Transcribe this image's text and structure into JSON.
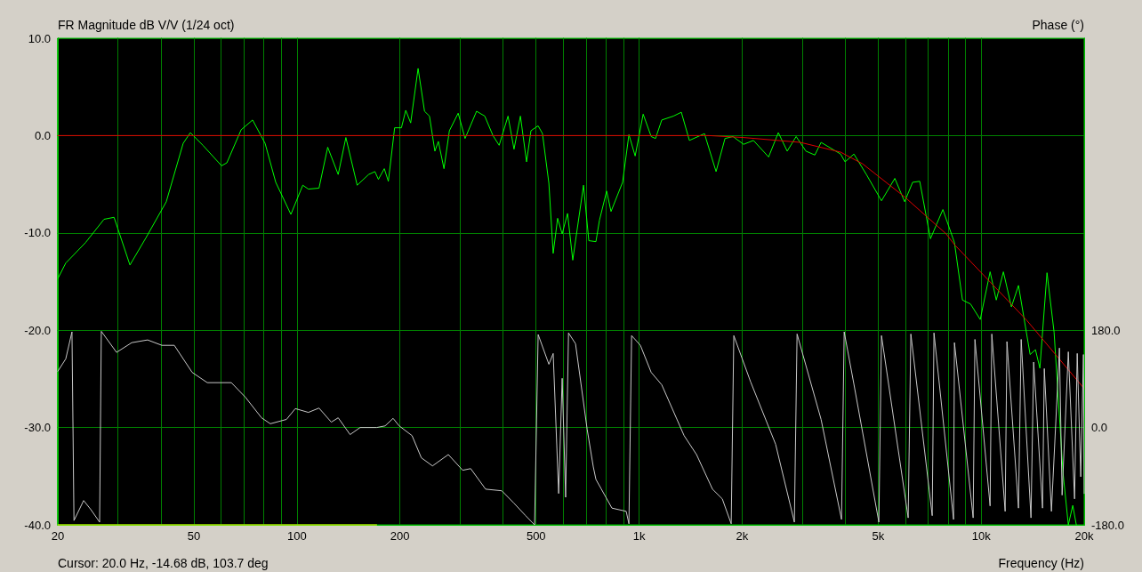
{
  "chart_data": {
    "type": "line",
    "title": "FR Magnitude dB V/V (1/24 oct)",
    "xlabel": "Frequency (Hz)",
    "y2label": "Phase (°)",
    "annotations": [
      "Cursor: 20.0 Hz, -14.68 dB, 103.7 deg"
    ],
    "log": "x",
    "grid": true,
    "marker": "none",
    "xlim": [
      20,
      20000
    ],
    "xticks": [
      20,
      {
        "value": 30,
        "label": null
      },
      {
        "value": 40,
        "label": null
      },
      50,
      {
        "value": 60,
        "label": null
      },
      {
        "value": 70,
        "label": null
      },
      {
        "value": 80,
        "label": null
      },
      {
        "value": 90,
        "label": null
      },
      100,
      200,
      {
        "value": 300,
        "label": null
      },
      {
        "value": 400,
        "label": null
      },
      500,
      {
        "value": 600,
        "label": null
      },
      {
        "value": 700,
        "label": null
      },
      {
        "value": 800,
        "label": null
      },
      {
        "value": 900,
        "label": null
      },
      {
        "value": 1000,
        "label": "1k"
      },
      {
        "value": 2000,
        "label": "2k"
      },
      {
        "value": 3000,
        "label": null
      },
      {
        "value": 4000,
        "label": null
      },
      {
        "value": 5000,
        "label": "5k"
      },
      {
        "value": 6000,
        "label": null
      },
      {
        "value": 7000,
        "label": null
      },
      {
        "value": 8000,
        "label": null
      },
      {
        "value": 9000,
        "label": null
      },
      {
        "value": 10000,
        "label": "10k"
      },
      {
        "value": 20000,
        "label": "20k"
      }
    ],
    "ylim": [
      -40,
      10
    ],
    "yticks": [
      {
        "value": -40,
        "label": "-40.0"
      },
      {
        "value": -30,
        "label": "-30.0"
      },
      {
        "value": -20,
        "label": "-20.0"
      },
      {
        "value": -10,
        "label": "-10.0"
      },
      {
        "value": 0,
        "label": "0.0"
      },
      {
        "value": 10,
        "label": "10.0"
      }
    ],
    "y2lim": [
      -180,
      720
    ],
    "y2ticks": [
      {
        "value": -180,
        "label": "-180.0"
      },
      {
        "value": 0,
        "label": "0.0"
      },
      {
        "value": 180,
        "label": "180.0"
      }
    ],
    "series": [
      {
        "color": "#00ff00",
        "x": [
          20,
          21.1,
          24.1,
          27.3,
          29.2,
          32.5,
          36.2,
          41.5,
          46.5,
          48.8,
          53.1,
          60.2,
          62.4,
          68.7,
          74.2,
          80.7,
          86.7,
          96,
          104,
          108,
          116,
          123,
          132,
          139,
          150,
          162,
          169,
          173,
          180,
          185,
          193,
          202,
          208,
          215,
          226,
          236,
          244,
          253,
          259,
          269,
          279,
          296,
          310,
          335,
          354,
          374,
          390,
          414,
          431,
          450,
          469,
          483,
          507,
          522,
          545,
          561,
          578,
          596,
          618,
          640,
          688,
          713,
          748,
          766,
          804,
          828,
          895,
          934,
          974,
          1028,
          1085,
          1117,
          1165,
          1260,
          1329,
          1403,
          1553,
          1679,
          1783,
          1881,
          2021,
          2159,
          2391,
          2553,
          2710,
          2878,
          3074,
          3264,
          3404,
          3882,
          4000,
          4246,
          4618,
          5112,
          5592,
          5974,
          6304,
          6613,
          7106,
          7727,
          8353,
          8816,
          9304,
          9937,
          10617,
          11069,
          11612,
          12254,
          12853,
          13899,
          14406,
          14843,
          15572,
          16332,
          17340,
          17975,
          18520,
          18967
        ],
        "values": [
          -14.7,
          -13.1,
          -11.0,
          -8.6,
          -8.4,
          -13.3,
          -10.5,
          -6.8,
          -0.8,
          0.3,
          -1.0,
          -3.1,
          -2.8,
          0.6,
          1.6,
          -0.8,
          -4.8,
          -8.1,
          -5.1,
          -5.5,
          -5.4,
          -1.2,
          -4.0,
          -0.2,
          -5.1,
          -4.0,
          -3.7,
          -4.5,
          -3.4,
          -4.7,
          0.8,
          0.8,
          2.6,
          1.3,
          6.9,
          2.5,
          2.0,
          -1.6,
          -0.6,
          -3.4,
          0.5,
          2.3,
          -0.3,
          2.5,
          2.0,
          0.0,
          -1.0,
          2.0,
          -1.4,
          2.0,
          -2.7,
          0.5,
          1.0,
          0.2,
          -4.9,
          -12.1,
          -8.5,
          -10.1,
          -8.0,
          -12.8,
          -5.1,
          -10.8,
          -10.9,
          -8.7,
          -5.7,
          -7.8,
          -4.8,
          0.1,
          -2.1,
          2.2,
          -0.1,
          -0.3,
          1.6,
          2.0,
          2.4,
          -0.5,
          0.2,
          -3.7,
          -0.3,
          -0.1,
          -0.9,
          -0.5,
          -2.2,
          0.3,
          -1.6,
          -0.1,
          -1.6,
          -2.0,
          -0.7,
          -1.9,
          -2.7,
          -1.9,
          -4.0,
          -6.7,
          -4.4,
          -6.8,
          -4.8,
          -4.7,
          -10.6,
          -7.6,
          -11.0,
          -16.9,
          -17.3,
          -18.9,
          -14.0,
          -16.9,
          -14.0,
          -17.6,
          -15.4,
          -22.5,
          -22.0,
          -23.9,
          -14.1,
          -20.2,
          -34.6,
          -40.0,
          -38.0,
          -40.0
        ]
      },
      {
        "color": "#e00000",
        "x": [
          20,
          1000,
          1600,
          2020,
          2960,
          3880,
          4500,
          5970,
          7900,
          8350,
          13600,
          20000
        ],
        "values": [
          0,
          0,
          0,
          -0.2,
          -0.7,
          -1.7,
          -2.9,
          -6.3,
          -10.1,
          -11.2,
          -19.0,
          -26.0
        ]
      },
      {
        "color": "#c8c8c8",
        "axis": "y2",
        "x": [
          20,
          21.1,
          22.0,
          22.3,
          23.8,
          25.0,
          26.5,
          26.8,
          29.7,
          32.9,
          36.6,
          40.3,
          43.8,
          49.4,
          54.7,
          59.8,
          64.3,
          70.7,
          78.8,
          83.6,
          93.2,
          98.9,
          108,
          116,
          126,
          132,
          139,
          143,
          153,
          171,
          181,
          191,
          199,
          217,
          231,
          249,
          277,
          305,
          322,
          356,
          397,
          431,
          466,
          495,
          507,
          545,
          561,
          582,
          596,
          610,
          622,
          652,
          705,
          735,
          748,
          776,
          833,
          917,
          934,
          951,
          1009,
          1085,
          1165,
          1354,
          1472,
          1639,
          1751,
          1859,
          1892,
          2120,
          2507,
          2844,
          2896,
          3404,
          3906,
          3977,
          4246,
          5022,
          5112,
          6118,
          6228,
          7192,
          7278,
          8302,
          8353,
          9473,
          9587,
          10617,
          10740,
          11750,
          11892,
          12853,
          13087,
          13980,
          14235,
          15110,
          15292,
          16042,
          16930,
          17238,
          17975,
          18744,
          19084,
          19544,
          19900,
          20000
        ],
        "values": [
          104,
          127,
          177,
          -172,
          -135,
          -152,
          -175,
          178,
          139,
          157,
          162,
          152,
          152,
          102,
          83,
          83,
          83,
          56,
          18,
          7,
          15,
          35,
          28,
          36,
          10,
          18,
          -2,
          -13,
          0,
          0,
          3,
          17,
          3,
          -15,
          -56,
          -71,
          -50,
          -79,
          -76,
          -114,
          -117,
          -140,
          -163,
          -180,
          172,
          117,
          137,
          -122,
          91,
          -129,
          175,
          155,
          -3,
          -73,
          -96,
          -114,
          -149,
          -155,
          -178,
          170,
          152,
          102,
          79,
          -15,
          -50,
          -114,
          -132,
          -178,
          170,
          84,
          -31,
          -175,
          173,
          15,
          -170,
          177,
          80,
          -175,
          170,
          -167,
          173,
          -163,
          175,
          -170,
          157,
          -167,
          163,
          -145,
          173,
          -155,
          159,
          -149,
          163,
          -167,
          121,
          -149,
          109,
          -155,
          147,
          -125,
          140,
          -132,
          137,
          -91,
          135,
          -122
        ]
      },
      {
        "color": "#ffff00",
        "x": [
          20,
          171
        ],
        "values": [
          -40,
          -40
        ]
      }
    ]
  }
}
